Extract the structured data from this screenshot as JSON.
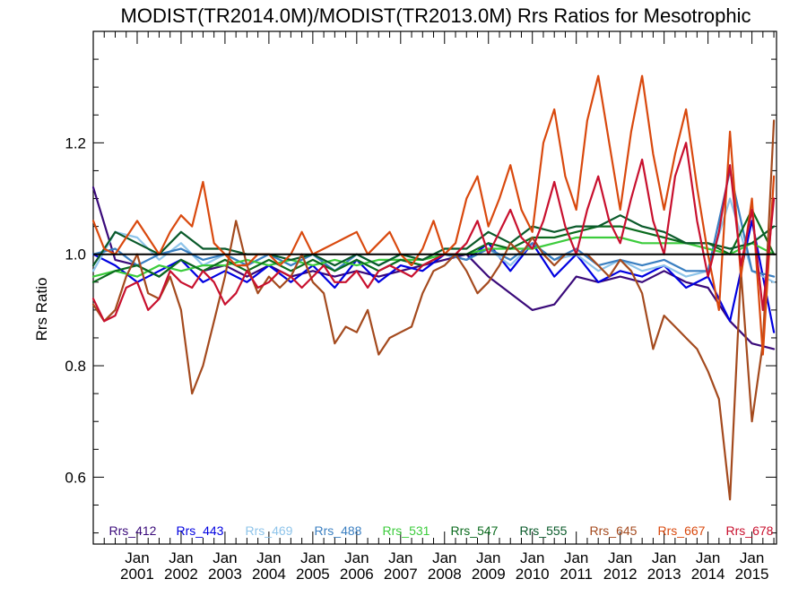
{
  "chart_data": {
    "type": "line",
    "title": "MODIST(TR2014.0M)/MODIST(TR2013.0M)  Rrs Ratios for Mesotrophic",
    "ylabel": "Rrs Ratio",
    "xlabel": "",
    "ylim": [
      0.48,
      1.4
    ],
    "xlim": [
      2000.0,
      2015.56
    ],
    "y_ticks": [
      0.6,
      0.8,
      1.0,
      1.2
    ],
    "y_tick_labels": [
      "0.6",
      "0.8",
      "1.0",
      "1.2"
    ],
    "x_ticks": [
      {
        "pos": 2001.0,
        "month": "Jan",
        "year": "2001"
      },
      {
        "pos": 2002.0,
        "month": "Jan",
        "year": "2002"
      },
      {
        "pos": 2003.0,
        "month": "Jan",
        "year": "2003"
      },
      {
        "pos": 2004.0,
        "month": "Jan",
        "year": "2004"
      },
      {
        "pos": 2005.0,
        "month": "Jan",
        "year": "2005"
      },
      {
        "pos": 2006.0,
        "month": "Jan",
        "year": "2006"
      },
      {
        "pos": 2007.0,
        "month": "Jan",
        "year": "2007"
      },
      {
        "pos": 2008.0,
        "month": "Jan",
        "year": "2008"
      },
      {
        "pos": 2009.0,
        "month": "Jan",
        "year": "2009"
      },
      {
        "pos": 2010.0,
        "month": "Jan",
        "year": "2010"
      },
      {
        "pos": 2011.0,
        "month": "Jan",
        "year": "2011"
      },
      {
        "pos": 2012.0,
        "month": "Jan",
        "year": "2012"
      },
      {
        "pos": 2013.0,
        "month": "Jan",
        "year": "2013"
      },
      {
        "pos": 2014.0,
        "month": "Jan",
        "year": "2014"
      },
      {
        "pos": 2015.0,
        "month": "Jan",
        "year": "2015"
      }
    ],
    "reference_line": 1.0,
    "legend_position": "bottom",
    "series": [
      {
        "name": "Rrs_412",
        "color": "#3a0a7a",
        "x": [
          2000.0,
          2000.5,
          2001.0,
          2001.5,
          2002.0,
          2002.5,
          2003.0,
          2003.5,
          2004.0,
          2004.5,
          2005.0,
          2005.5,
          2006.0,
          2006.5,
          2007.0,
          2007.5,
          2008.0,
          2008.5,
          2009.0,
          2009.5,
          2010.0,
          2010.5,
          2011.0,
          2011.5,
          2012.0,
          2012.5,
          2013.0,
          2013.5,
          2014.0,
          2014.5,
          2015.0,
          2015.5
        ],
        "y": [
          1.12,
          0.99,
          0.98,
          0.96,
          0.99,
          0.97,
          0.98,
          0.96,
          0.98,
          0.96,
          0.97,
          0.96,
          0.97,
          0.96,
          0.97,
          0.98,
          0.99,
          1.0,
          0.96,
          0.93,
          0.9,
          0.91,
          0.96,
          0.95,
          0.96,
          0.95,
          0.97,
          0.95,
          0.94,
          0.88,
          0.84,
          0.83
        ]
      },
      {
        "name": "Rrs_443",
        "color": "#0000e0",
        "x": [
          2000.0,
          2000.5,
          2001.0,
          2001.5,
          2002.0,
          2002.5,
          2003.0,
          2003.5,
          2004.0,
          2004.5,
          2005.0,
          2005.5,
          2006.0,
          2006.5,
          2007.0,
          2007.5,
          2008.0,
          2008.5,
          2009.0,
          2009.5,
          2010.0,
          2010.5,
          2011.0,
          2011.5,
          2012.0,
          2012.5,
          2013.0,
          2013.5,
          2014.0,
          2014.5,
          2015.0,
          2015.5
        ],
        "y": [
          1.0,
          0.98,
          0.95,
          0.97,
          0.99,
          0.95,
          0.97,
          0.95,
          0.98,
          0.95,
          0.98,
          0.94,
          0.99,
          0.95,
          0.98,
          0.97,
          1.0,
          0.99,
          1.02,
          0.97,
          1.02,
          0.96,
          1.0,
          0.95,
          0.97,
          0.96,
          0.98,
          0.94,
          0.96,
          0.88,
          1.06,
          0.86
        ]
      },
      {
        "name": "Rrs_469",
        "color": "#8ec4ea",
        "x": [
          2000.0,
          2000.5,
          2001.0,
          2001.5,
          2002.0,
          2002.5,
          2003.0,
          2003.5,
          2004.0,
          2004.5,
          2005.0,
          2005.5,
          2006.0,
          2006.5,
          2007.0,
          2007.5,
          2008.0,
          2008.5,
          2009.0,
          2009.5,
          2010.0,
          2010.5,
          2011.0,
          2011.5,
          2012.0,
          2012.5,
          2013.0,
          2013.5,
          2014.0,
          2014.5,
          2015.0,
          2015.5
        ],
        "y": [
          0.97,
          1.04,
          1.03,
          0.99,
          1.02,
          0.98,
          1.0,
          0.98,
          1.0,
          0.98,
          1.0,
          0.97,
          0.99,
          0.97,
          0.99,
          0.98,
          1.0,
          0.99,
          1.01,
          0.98,
          1.02,
          0.99,
          1.0,
          0.97,
          0.99,
          0.97,
          0.98,
          0.96,
          0.97,
          1.1,
          0.97,
          0.95
        ]
      },
      {
        "name": "Rrs_488",
        "color": "#3a7fc1",
        "x": [
          2000.0,
          2000.5,
          2001.0,
          2001.5,
          2002.0,
          2002.5,
          2003.0,
          2003.5,
          2004.0,
          2004.5,
          2005.0,
          2005.5,
          2006.0,
          2006.5,
          2007.0,
          2007.5,
          2008.0,
          2008.5,
          2009.0,
          2009.5,
          2010.0,
          2010.5,
          2011.0,
          2011.5,
          2012.0,
          2012.5,
          2013.0,
          2013.5,
          2014.0,
          2014.5,
          2015.0,
          2015.5
        ],
        "y": [
          1.0,
          1.01,
          0.98,
          1.0,
          1.01,
          0.99,
          1.0,
          0.98,
          1.0,
          0.98,
          1.0,
          0.97,
          1.0,
          0.98,
          1.0,
          0.99,
          1.0,
          0.99,
          1.01,
          0.99,
          1.02,
          0.99,
          1.01,
          0.98,
          0.99,
          0.98,
          0.99,
          0.97,
          0.97,
          1.15,
          0.97,
          0.96
        ]
      },
      {
        "name": "Rrs_531",
        "color": "#3ccc3c",
        "x": [
          2000.0,
          2000.5,
          2001.0,
          2001.5,
          2002.0,
          2002.5,
          2003.0,
          2003.5,
          2004.0,
          2004.5,
          2005.0,
          2005.5,
          2006.0,
          2006.5,
          2007.0,
          2007.5,
          2008.0,
          2008.5,
          2009.0,
          2009.5,
          2010.0,
          2010.5,
          2011.0,
          2011.5,
          2012.0,
          2012.5,
          2013.0,
          2013.5,
          2014.0,
          2014.5,
          2015.0,
          2015.5
        ],
        "y": [
          0.96,
          0.97,
          0.96,
          0.98,
          0.97,
          0.98,
          0.98,
          0.99,
          0.98,
          0.99,
          0.98,
          0.99,
          0.98,
          0.99,
          0.99,
          0.99,
          1.0,
          1.0,
          1.01,
          1.01,
          1.01,
          1.02,
          1.03,
          1.03,
          1.03,
          1.02,
          1.02,
          1.02,
          1.01,
          1.0,
          1.02,
          1.0
        ]
      },
      {
        "name": "Rrs_547",
        "color": "#0b6b1e",
        "x": [
          2000.0,
          2000.5,
          2001.0,
          2001.5,
          2002.0,
          2002.5,
          2003.0,
          2003.5,
          2004.0,
          2004.5,
          2005.0,
          2005.5,
          2006.0,
          2006.5,
          2007.0,
          2007.5,
          2008.0,
          2008.5,
          2009.0,
          2009.5,
          2010.0,
          2010.5,
          2011.0,
          2011.5,
          2012.0,
          2012.5,
          2013.0,
          2013.5,
          2014.0,
          2014.5,
          2015.0,
          2015.5
        ],
        "y": [
          0.95,
          0.97,
          0.98,
          0.96,
          0.99,
          0.97,
          0.99,
          0.97,
          0.99,
          0.97,
          0.99,
          0.97,
          0.99,
          0.97,
          0.99,
          0.98,
          1.0,
          1.0,
          1.02,
          1.01,
          1.03,
          1.03,
          1.04,
          1.05,
          1.05,
          1.04,
          1.03,
          1.02,
          1.02,
          1.0,
          1.08,
          1.0
        ]
      },
      {
        "name": "Rrs_555",
        "color": "#0a5a2a",
        "x": [
          2000.0,
          2000.5,
          2001.0,
          2001.5,
          2002.0,
          2002.5,
          2003.0,
          2003.5,
          2004.0,
          2004.5,
          2005.0,
          2005.5,
          2006.0,
          2006.5,
          2007.0,
          2007.5,
          2008.0,
          2008.5,
          2009.0,
          2009.5,
          2010.0,
          2010.5,
          2011.0,
          2011.5,
          2012.0,
          2012.5,
          2013.0,
          2013.5,
          2014.0,
          2014.5,
          2015.0,
          2015.5
        ],
        "y": [
          0.98,
          1.04,
          1.02,
          1.0,
          1.04,
          1.01,
          1.01,
          1.0,
          1.0,
          0.99,
          1.0,
          0.98,
          1.0,
          0.98,
          1.0,
          0.99,
          1.01,
          1.01,
          1.04,
          1.02,
          1.05,
          1.04,
          1.05,
          1.05,
          1.07,
          1.05,
          1.04,
          1.02,
          1.02,
          1.01,
          1.02,
          1.05
        ]
      },
      {
        "name": "Rrs_645",
        "color": "#a44a1e",
        "x": [
          2000.0,
          2000.25,
          2000.5,
          2000.75,
          2001.0,
          2001.25,
          2001.5,
          2001.75,
          2002.0,
          2002.25,
          2002.5,
          2002.75,
          2003.0,
          2003.25,
          2003.5,
          2003.75,
          2004.0,
          2004.25,
          2004.5,
          2004.75,
          2005.0,
          2005.25,
          2005.5,
          2005.75,
          2006.0,
          2006.25,
          2006.5,
          2006.75,
          2007.0,
          2007.25,
          2007.5,
          2007.75,
          2008.0,
          2008.25,
          2008.5,
          2008.75,
          2009.0,
          2009.25,
          2009.5,
          2009.75,
          2010.0,
          2010.25,
          2010.5,
          2010.75,
          2011.0,
          2011.25,
          2011.5,
          2011.75,
          2012.0,
          2012.25,
          2012.5,
          2012.75,
          2013.0,
          2013.25,
          2013.5,
          2013.75,
          2014.0,
          2014.25,
          2014.5,
          2014.75,
          2015.0,
          2015.25,
          2015.5
        ],
        "y": [
          0.91,
          0.88,
          0.9,
          0.96,
          1.0,
          0.93,
          0.92,
          0.96,
          0.9,
          0.75,
          0.8,
          0.88,
          0.96,
          1.06,
          0.98,
          0.93,
          0.96,
          0.94,
          0.96,
          1.0,
          0.95,
          0.93,
          0.84,
          0.87,
          0.86,
          0.9,
          0.82,
          0.85,
          0.86,
          0.87,
          0.93,
          0.97,
          0.98,
          1.0,
          0.97,
          0.93,
          0.95,
          0.98,
          1.02,
          1.0,
          1.03,
          1.0,
          0.98,
          1.0,
          1.0,
          1.0,
          0.98,
          0.96,
          0.99,
          0.97,
          0.93,
          0.83,
          0.89,
          0.87,
          0.85,
          0.83,
          0.79,
          0.74,
          0.56,
          0.97,
          0.7,
          0.84,
          1.24
        ]
      },
      {
        "name": "Rrs_667",
        "color": "#d9490e",
        "x": [
          2000.0,
          2000.25,
          2000.5,
          2000.75,
          2001.0,
          2001.25,
          2001.5,
          2001.75,
          2002.0,
          2002.25,
          2002.5,
          2002.75,
          2003.0,
          2003.25,
          2003.5,
          2003.75,
          2004.0,
          2004.25,
          2004.5,
          2004.75,
          2005.0,
          2005.25,
          2005.5,
          2005.75,
          2006.0,
          2006.25,
          2006.5,
          2006.75,
          2007.0,
          2007.25,
          2007.5,
          2007.75,
          2008.0,
          2008.25,
          2008.5,
          2008.75,
          2009.0,
          2009.25,
          2009.5,
          2009.75,
          2010.0,
          2010.25,
          2010.5,
          2010.75,
          2011.0,
          2011.25,
          2011.5,
          2011.75,
          2012.0,
          2012.25,
          2012.5,
          2012.75,
          2013.0,
          2013.25,
          2013.5,
          2013.75,
          2014.0,
          2014.25,
          2014.5,
          2014.75,
          2015.0,
          2015.25,
          2015.5
        ],
        "y": [
          1.06,
          1.01,
          1.0,
          1.03,
          1.06,
          1.03,
          1.0,
          1.04,
          1.07,
          1.05,
          1.13,
          1.02,
          1.0,
          0.98,
          0.98,
          1.0,
          1.0,
          0.98,
          1.0,
          1.04,
          1.0,
          1.01,
          1.02,
          1.03,
          1.04,
          1.0,
          1.02,
          1.04,
          1.0,
          0.98,
          1.01,
          1.06,
          1.0,
          1.02,
          1.1,
          1.14,
          1.05,
          1.1,
          1.16,
          1.08,
          1.04,
          1.2,
          1.26,
          1.14,
          1.08,
          1.24,
          1.32,
          1.2,
          1.08,
          1.22,
          1.32,
          1.18,
          1.08,
          1.18,
          1.26,
          1.12,
          1.0,
          0.9,
          1.22,
          0.96,
          1.1,
          0.82,
          1.14
        ]
      },
      {
        "name": "Rrs_678",
        "color": "#c8102e",
        "x": [
          2000.0,
          2000.25,
          2000.5,
          2000.75,
          2001.0,
          2001.25,
          2001.5,
          2001.75,
          2002.0,
          2002.25,
          2002.5,
          2002.75,
          2003.0,
          2003.25,
          2003.5,
          2003.75,
          2004.0,
          2004.25,
          2004.5,
          2004.75,
          2005.0,
          2005.25,
          2005.5,
          2005.75,
          2006.0,
          2006.25,
          2006.5,
          2006.75,
          2007.0,
          2007.25,
          2007.5,
          2007.75,
          2008.0,
          2008.25,
          2008.5,
          2008.75,
          2009.0,
          2009.25,
          2009.5,
          2009.75,
          2010.0,
          2010.25,
          2010.5,
          2010.75,
          2011.0,
          2011.25,
          2011.5,
          2011.75,
          2012.0,
          2012.25,
          2012.5,
          2012.75,
          2013.0,
          2013.25,
          2013.5,
          2013.75,
          2014.0,
          2014.25,
          2014.5,
          2014.75,
          2015.0,
          2015.25,
          2015.5
        ],
        "y": [
          0.92,
          0.88,
          0.89,
          0.94,
          0.95,
          0.9,
          0.92,
          0.97,
          0.95,
          0.94,
          0.97,
          0.95,
          0.91,
          0.93,
          0.97,
          0.94,
          0.95,
          0.97,
          0.96,
          0.94,
          0.96,
          0.98,
          0.95,
          0.95,
          0.97,
          0.94,
          0.97,
          0.98,
          0.97,
          0.96,
          0.98,
          0.99,
          1.0,
          1.0,
          1.02,
          1.06,
          1.0,
          1.04,
          1.08,
          1.03,
          1.01,
          1.06,
          1.13,
          1.05,
          1.0,
          1.08,
          1.14,
          1.06,
          1.02,
          1.1,
          1.17,
          1.06,
          1.0,
          1.14,
          1.2,
          1.06,
          0.96,
          1.04,
          1.16,
          0.98,
          1.08,
          0.9,
          1.1
        ]
      }
    ]
  }
}
